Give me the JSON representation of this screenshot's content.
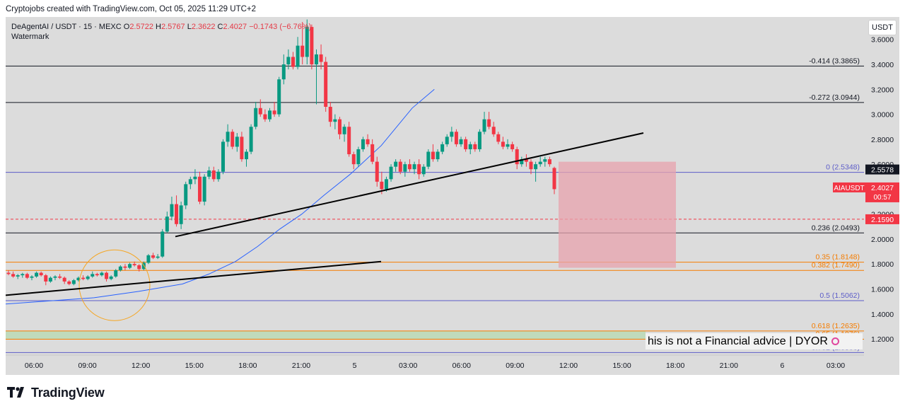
{
  "credit": "Cryptojobs created with TradingView.com, Oct 05, 2025 11:29 UTC+2",
  "legend": {
    "pair": "DeAgentAI / USDT · 15 · MEXC",
    "open_label": "O",
    "open": "2.5722",
    "high_label": "H",
    "high": "2.5767",
    "low_label": "L",
    "low": "2.3622",
    "close_label": "C",
    "close": "2.4027",
    "change": "−0.1743 (−6.76%)",
    "watermark": "Watermark"
  },
  "currency_button": "USDT",
  "disclaimer": "his is not a Financial advice | DYOR",
  "brand": "TradingView",
  "colors": {
    "up": "#089981",
    "down": "#f23645",
    "ma": "#2962ff",
    "fib_black": "#131722",
    "fib_orange": "#f57c00",
    "fib_purple": "#5c5cc8",
    "zone_red": "#e8a3ad",
    "zone_green": "#b9d9b4",
    "dash_red": "#f23645"
  },
  "chart_data": {
    "type": "candlestick",
    "symbol": "AIAUSDT",
    "ylim": [
      1.07,
      3.78
    ],
    "y_ticks": [
      "3.6000",
      "3.4000",
      "3.2000",
      "3.0000",
      "2.8000",
      "2.6000",
      "2.4000",
      "2.2000",
      "2.0000",
      "1.8000",
      "1.6000",
      "1.4000",
      "1.2000"
    ],
    "x_ticks": [
      "06:00",
      "09:00",
      "12:00",
      "15:00",
      "18:00",
      "21:00",
      "5",
      "03:00",
      "06:00",
      "09:00",
      "12:00",
      "15:00",
      "18:00",
      "21:00",
      "6",
      "03:00"
    ],
    "fib_levels": [
      {
        "label": "-0.414 (3.3865)",
        "value": 3.3865,
        "color": "black"
      },
      {
        "label": "-0.272 (3.0944)",
        "value": 3.0944,
        "color": "black"
      },
      {
        "label": "0 (2.5348)",
        "value": 2.5348,
        "color": "purple"
      },
      {
        "label": "0.236 (2.0493)",
        "value": 2.0493,
        "color": "black"
      },
      {
        "label": "0.35 (1.8148)",
        "value": 1.8148,
        "color": "orange"
      },
      {
        "label": "0.382 (1.7490)",
        "value": 1.749,
        "color": "orange"
      },
      {
        "label": "0.5 (1.5062)",
        "value": 1.5062,
        "color": "purple"
      },
      {
        "label": "0.618 (1.2635)",
        "value": 1.2635,
        "color": "orange"
      },
      {
        "label": "0.65 (1.1976)",
        "value": 1.1976,
        "color": "orange"
      },
      {
        "label": "0.702 (1.0906)",
        "value": 1.0906,
        "color": "purple"
      }
    ],
    "price_badges": [
      {
        "label": "2.5578",
        "value": 2.5578,
        "color": "#131722"
      },
      {
        "label": "2.4027",
        "value": 2.4027,
        "color": "#f23645",
        "symbol": "AIAUSDT",
        "countdown": "00:57"
      },
      {
        "label": "2.1590",
        "value": 2.159,
        "color": "#f23645"
      }
    ],
    "dashed_level": 2.159,
    "candles": [
      [
        1.73,
        1.75,
        1.71,
        1.72
      ],
      [
        1.72,
        1.74,
        1.69,
        1.7
      ],
      [
        1.7,
        1.72,
        1.68,
        1.71
      ],
      [
        1.71,
        1.73,
        1.69,
        1.72
      ],
      [
        1.72,
        1.73,
        1.68,
        1.69
      ],
      [
        1.69,
        1.71,
        1.67,
        1.7
      ],
      [
        1.7,
        1.74,
        1.69,
        1.73
      ],
      [
        1.73,
        1.74,
        1.7,
        1.71
      ],
      [
        1.71,
        1.72,
        1.63,
        1.66
      ],
      [
        1.66,
        1.7,
        1.65,
        1.69
      ],
      [
        1.69,
        1.71,
        1.67,
        1.7
      ],
      [
        1.7,
        1.72,
        1.68,
        1.69
      ],
      [
        1.69,
        1.7,
        1.64,
        1.66
      ],
      [
        1.66,
        1.67,
        1.63,
        1.64
      ],
      [
        1.64,
        1.68,
        1.63,
        1.67
      ],
      [
        1.67,
        1.7,
        1.66,
        1.69
      ],
      [
        1.69,
        1.71,
        1.67,
        1.68
      ],
      [
        1.68,
        1.71,
        1.67,
        1.7
      ],
      [
        1.7,
        1.74,
        1.69,
        1.72
      ],
      [
        1.72,
        1.73,
        1.7,
        1.71
      ],
      [
        1.71,
        1.74,
        1.7,
        1.73
      ],
      [
        1.73,
        1.74,
        1.66,
        1.68
      ],
      [
        1.68,
        1.71,
        1.67,
        1.7
      ],
      [
        1.7,
        1.76,
        1.69,
        1.75
      ],
      [
        1.75,
        1.79,
        1.74,
        1.78
      ],
      [
        1.78,
        1.8,
        1.75,
        1.77
      ],
      [
        1.77,
        1.81,
        1.76,
        1.8
      ],
      [
        1.8,
        1.82,
        1.78,
        1.79
      ],
      [
        1.79,
        1.8,
        1.74,
        1.76
      ],
      [
        1.76,
        1.82,
        1.75,
        1.81
      ],
      [
        1.81,
        1.88,
        1.8,
        1.87
      ],
      [
        1.87,
        1.89,
        1.84,
        1.85
      ],
      [
        1.85,
        1.88,
        1.84,
        1.86
      ],
      [
        1.86,
        2.08,
        1.85,
        2.06
      ],
      [
        2.06,
        2.22,
        2.05,
        2.18
      ],
      [
        2.18,
        2.34,
        2.15,
        2.28
      ],
      [
        2.28,
        2.35,
        2.1,
        2.12
      ],
      [
        2.12,
        2.3,
        2.08,
        2.27
      ],
      [
        2.27,
        2.46,
        2.24,
        2.44
      ],
      [
        2.44,
        2.5,
        2.4,
        2.48
      ],
      [
        2.48,
        2.56,
        2.44,
        2.5
      ],
      [
        2.5,
        2.54,
        2.28,
        2.3
      ],
      [
        2.3,
        2.52,
        2.27,
        2.5
      ],
      [
        2.5,
        2.58,
        2.48,
        2.55
      ],
      [
        2.55,
        2.58,
        2.46,
        2.48
      ],
      [
        2.48,
        2.56,
        2.46,
        2.54
      ],
      [
        2.54,
        2.8,
        2.52,
        2.78
      ],
      [
        2.78,
        2.92,
        2.74,
        2.86
      ],
      [
        2.86,
        2.88,
        2.72,
        2.74
      ],
      [
        2.74,
        2.85,
        2.7,
        2.82
      ],
      [
        2.82,
        2.86,
        2.62,
        2.64
      ],
      [
        2.64,
        2.72,
        2.58,
        2.7
      ],
      [
        2.7,
        2.92,
        2.68,
        2.9
      ],
      [
        2.9,
        3.1,
        2.88,
        3.05
      ],
      [
        3.05,
        3.12,
        2.98,
        3.0
      ],
      [
        3.0,
        3.04,
        2.94,
        2.96
      ],
      [
        2.96,
        3.05,
        2.94,
        3.03
      ],
      [
        3.03,
        3.1,
        2.98,
        3.0
      ],
      [
        3.0,
        3.3,
        2.98,
        3.28
      ],
      [
        3.28,
        3.48,
        3.24,
        3.4
      ],
      [
        3.4,
        3.52,
        3.36,
        3.46
      ],
      [
        3.46,
        3.5,
        3.36,
        3.38
      ],
      [
        3.38,
        3.62,
        3.36,
        3.55
      ],
      [
        3.55,
        3.74,
        3.4,
        3.46
      ],
      [
        3.46,
        3.76,
        3.4,
        3.7
      ],
      [
        3.7,
        3.72,
        3.36,
        3.4
      ],
      [
        3.4,
        3.52,
        3.08,
        3.48
      ],
      [
        3.48,
        3.56,
        3.36,
        3.42
      ],
      [
        3.42,
        3.46,
        3.02,
        3.06
      ],
      [
        3.06,
        3.1,
        2.9,
        2.94
      ],
      [
        2.94,
        3.0,
        2.88,
        2.96
      ],
      [
        2.96,
        2.98,
        2.8,
        2.84
      ],
      [
        2.84,
        2.92,
        2.78,
        2.9
      ],
      [
        2.9,
        2.94,
        2.66,
        2.68
      ],
      [
        2.68,
        2.7,
        2.56,
        2.6
      ],
      [
        2.6,
        2.74,
        2.58,
        2.72
      ],
      [
        2.72,
        2.82,
        2.7,
        2.8
      ],
      [
        2.8,
        2.84,
        2.74,
        2.76
      ],
      [
        2.76,
        2.8,
        2.6,
        2.62
      ],
      [
        2.62,
        2.66,
        2.42,
        2.46
      ],
      [
        2.46,
        2.54,
        2.36,
        2.4
      ],
      [
        2.4,
        2.5,
        2.38,
        2.48
      ],
      [
        2.48,
        2.6,
        2.46,
        2.58
      ],
      [
        2.58,
        2.64,
        2.54,
        2.62
      ],
      [
        2.62,
        2.64,
        2.52,
        2.54
      ],
      [
        2.54,
        2.62,
        2.5,
        2.6
      ],
      [
        2.6,
        2.64,
        2.54,
        2.56
      ],
      [
        2.56,
        2.62,
        2.52,
        2.6
      ],
      [
        2.6,
        2.64,
        2.48,
        2.52
      ],
      [
        2.52,
        2.6,
        2.5,
        2.58
      ],
      [
        2.58,
        2.72,
        2.56,
        2.7
      ],
      [
        2.7,
        2.76,
        2.62,
        2.64
      ],
      [
        2.64,
        2.72,
        2.62,
        2.7
      ],
      [
        2.7,
        2.78,
        2.68,
        2.76
      ],
      [
        2.76,
        2.84,
        2.74,
        2.82
      ],
      [
        2.82,
        2.9,
        2.78,
        2.86
      ],
      [
        2.86,
        2.88,
        2.74,
        2.76
      ],
      [
        2.76,
        2.82,
        2.74,
        2.8
      ],
      [
        2.8,
        2.82,
        2.7,
        2.72
      ],
      [
        2.72,
        2.78,
        2.68,
        2.76
      ],
      [
        2.76,
        2.78,
        2.7,
        2.72
      ],
      [
        2.72,
        2.88,
        2.7,
        2.86
      ],
      [
        2.86,
        3.02,
        2.84,
        2.96
      ],
      [
        2.96,
        3.02,
        2.88,
        2.9
      ],
      [
        2.9,
        2.94,
        2.82,
        2.84
      ],
      [
        2.84,
        2.86,
        2.76,
        2.78
      ],
      [
        2.78,
        2.82,
        2.72,
        2.74
      ],
      [
        2.74,
        2.8,
        2.72,
        2.76
      ],
      [
        2.76,
        2.78,
        2.7,
        2.72
      ],
      [
        2.72,
        2.74,
        2.56,
        2.6
      ],
      [
        2.6,
        2.66,
        2.58,
        2.64
      ],
      [
        2.64,
        2.68,
        2.58,
        2.62
      ],
      [
        2.62,
        2.64,
        2.52,
        2.56
      ],
      [
        2.56,
        2.62,
        2.46,
        2.6
      ],
      [
        2.6,
        2.66,
        2.58,
        2.62
      ],
      [
        2.62,
        2.66,
        2.58,
        2.64
      ],
      [
        2.64,
        2.66,
        2.58,
        2.6
      ],
      [
        2.57,
        2.58,
        2.36,
        2.4
      ]
    ],
    "moving_average": [
      [
        1.48,
        0
      ],
      [
        1.53,
        20
      ],
      [
        1.58,
        30
      ],
      [
        1.64,
        40
      ],
      [
        1.72,
        46
      ],
      [
        1.82,
        52
      ],
      [
        1.94,
        57
      ],
      [
        2.08,
        62
      ],
      [
        2.2,
        67
      ],
      [
        2.35,
        72
      ],
      [
        2.52,
        78
      ],
      [
        2.75,
        85
      ],
      [
        3.05,
        92
      ],
      [
        3.2,
        97
      ]
    ]
  }
}
